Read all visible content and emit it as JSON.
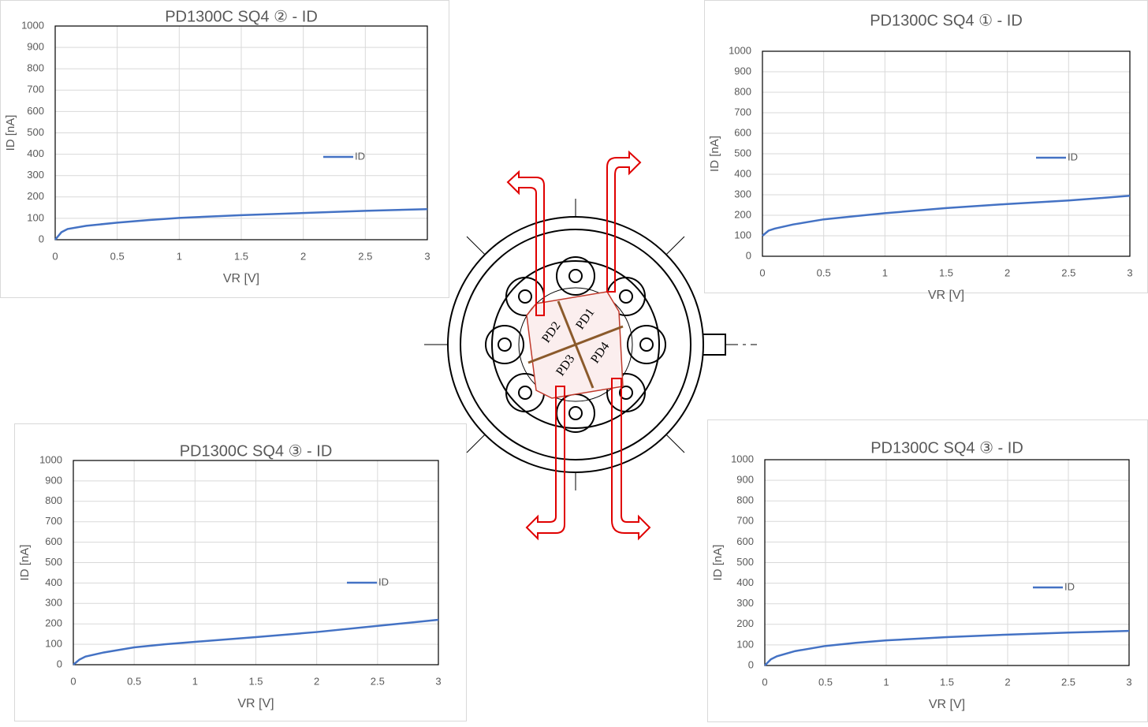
{
  "chart_data": [
    {
      "type": "line",
      "title": "PD1300C SQ4 ② - ID",
      "xlabel": "VR [V]",
      "ylabel": "ID [nA]",
      "x": [
        0,
        0.05,
        0.1,
        0.25,
        0.5,
        0.75,
        1,
        1.5,
        2,
        2.5,
        3
      ],
      "series": [
        {
          "name": "ID",
          "color": "#4472c4",
          "values": [
            0,
            35,
            50,
            65,
            80,
            92,
            102,
            115,
            125,
            135,
            143
          ]
        }
      ],
      "xlim": [
        0,
        3
      ],
      "ylim": [
        0,
        1000
      ],
      "xticks": [
        0,
        0.5,
        1,
        1.5,
        2,
        2.5,
        3
      ],
      "yticks": [
        0,
        100,
        200,
        300,
        400,
        500,
        600,
        700,
        800,
        900,
        1000
      ],
      "grid": true
    },
    {
      "type": "line",
      "title": "PD1300C SQ4 ① - ID",
      "xlabel": "VR [V]",
      "ylabel": "ID [nA]",
      "x": [
        0,
        0.05,
        0.1,
        0.25,
        0.5,
        0.75,
        1,
        1.5,
        2,
        2.5,
        3
      ],
      "series": [
        {
          "name": "ID",
          "color": "#4472c4",
          "values": [
            100,
            125,
            135,
            155,
            180,
            195,
            210,
            235,
            255,
            272,
            295
          ]
        }
      ],
      "xlim": [
        0,
        3
      ],
      "ylim": [
        0,
        1000
      ],
      "xticks": [
        0,
        0.5,
        1,
        1.5,
        2,
        2.5,
        3
      ],
      "yticks": [
        0,
        100,
        200,
        300,
        400,
        500,
        600,
        700,
        800,
        900,
        1000
      ],
      "grid": true
    },
    {
      "type": "line",
      "title": "PD1300C SQ4 ③ - ID",
      "xlabel": "VR [V]",
      "ylabel": "ID [nA]",
      "x": [
        0,
        0.05,
        0.1,
        0.25,
        0.5,
        0.75,
        1,
        1.5,
        2,
        2.5,
        3
      ],
      "series": [
        {
          "name": "ID",
          "color": "#4472c4",
          "values": [
            0,
            25,
            40,
            60,
            85,
            100,
            112,
            135,
            160,
            190,
            220
          ]
        }
      ],
      "xlim": [
        0,
        3
      ],
      "ylim": [
        0,
        1000
      ],
      "xticks": [
        0,
        0.5,
        1,
        1.5,
        2,
        2.5,
        3
      ],
      "yticks": [
        0,
        100,
        200,
        300,
        400,
        500,
        600,
        700,
        800,
        900,
        1000
      ],
      "grid": true
    },
    {
      "type": "line",
      "title": "PD1300C SQ4 ③ - ID",
      "xlabel": "VR [V]",
      "ylabel": "ID [nA]",
      "x": [
        0,
        0.05,
        0.1,
        0.25,
        0.5,
        0.75,
        1,
        1.5,
        2,
        2.5,
        3
      ],
      "series": [
        {
          "name": "ID",
          "color": "#4472c4",
          "values": [
            0,
            30,
            45,
            70,
            95,
            110,
            122,
            138,
            150,
            160,
            168
          ]
        }
      ],
      "xlim": [
        0,
        3
      ],
      "ylim": [
        0,
        1000
      ],
      "xticks": [
        0,
        0.5,
        1,
        1.5,
        2,
        2.5,
        3
      ],
      "yticks": [
        0,
        100,
        200,
        300,
        400,
        500,
        600,
        700,
        800,
        900,
        1000
      ],
      "grid": true
    }
  ],
  "diagram": {
    "labels": [
      "PD1",
      "PD2",
      "PD3",
      "PD4"
    ]
  }
}
